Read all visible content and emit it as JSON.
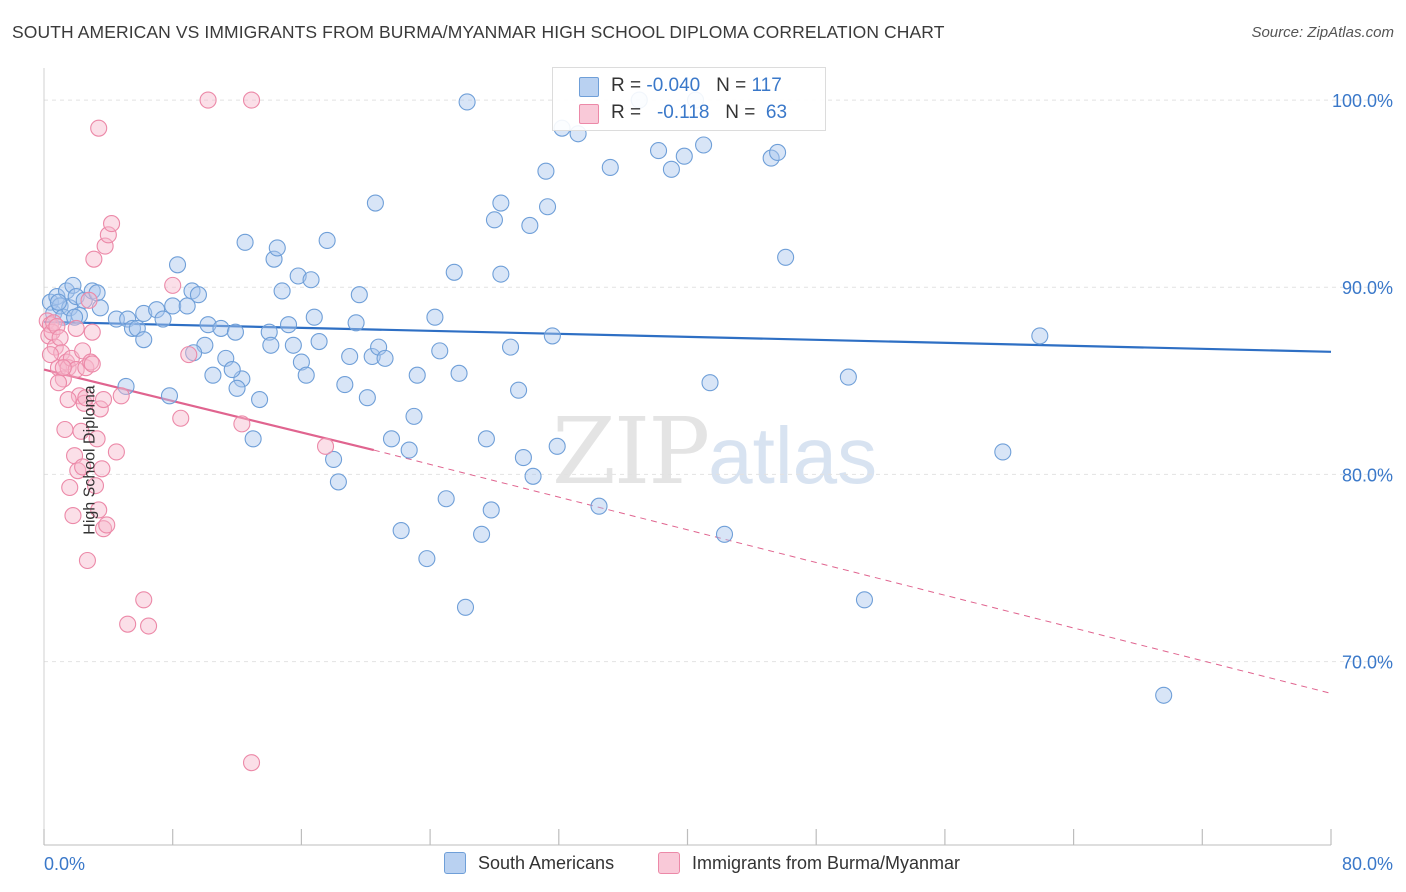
{
  "header": {
    "title": "SOUTH AMERICAN VS IMMIGRANTS FROM BURMA/MYANMAR HIGH SCHOOL DIPLOMA CORRELATION CHART",
    "source": "Source: ZipAtlas.com"
  },
  "legend_box": {
    "row1": {
      "r_label": "R = ",
      "r_value": "-0.040",
      "n_label": "N = ",
      "n_value": "117"
    },
    "row2": {
      "r_label": "R = ",
      "r_value": "-0.118",
      "n_label": "N = ",
      "n_value": "63"
    }
  },
  "colors": {
    "blue_fill": "#a9c6ee",
    "blue_stroke": "#6f9fd8",
    "blue_line": "#2e6fc4",
    "pink_fill": "#f6b8cc",
    "pink_stroke": "#ec89a8",
    "pink_line": "#e0648f",
    "grid": "#e2e2e2",
    "tick_label": "#3a78c9"
  },
  "chart_data": {
    "type": "scatter",
    "title": "SOUTH AMERICAN VS IMMIGRANTS FROM BURMA/MYANMAR HIGH SCHOOL DIPLOMA CORRELATION CHART",
    "xlabel": "",
    "ylabel": "High School Diploma",
    "xlim": [
      0,
      80
    ],
    "ylim": [
      60.2,
      101.5
    ],
    "x_tick_labels": [
      "0.0%",
      "80.0%"
    ],
    "y_ticks": [
      70,
      80,
      90,
      100
    ],
    "y_tick_labels": [
      "70.0%",
      "80.0%",
      "90.0%",
      "100.0%"
    ],
    "grid": true,
    "legend_position": "bottom",
    "series": [
      {
        "name": "South Americans",
        "color": "#a9c6ee",
        "R": -0.04,
        "N": 117,
        "trend": {
          "x": [
            0,
            80
          ],
          "y": [
            88.15,
            86.55
          ],
          "dashed_to": null
        },
        "points": [
          [
            0.4,
            89.2
          ],
          [
            0.6,
            88.6
          ],
          [
            0.8,
            89.5
          ],
          [
            1.0,
            89.0
          ],
          [
            1.2,
            88.4
          ],
          [
            1.4,
            89.8
          ],
          [
            1.6,
            88.9
          ],
          [
            1.8,
            90.1
          ],
          [
            2.0,
            89.5
          ],
          [
            2.2,
            88.5
          ],
          [
            2.5,
            89.3
          ],
          [
            3.0,
            89.8
          ],
          [
            3.3,
            89.7
          ],
          [
            4.5,
            88.3
          ],
          [
            5.2,
            88.3
          ],
          [
            5.5,
            87.8
          ],
          [
            5.8,
            87.8
          ],
          [
            6.2,
            88.6
          ],
          [
            6.2,
            87.2
          ],
          [
            7.0,
            88.8
          ],
          [
            7.4,
            88.3
          ],
          [
            8.0,
            89.0
          ],
          [
            8.3,
            91.2
          ],
          [
            8.9,
            89.0
          ],
          [
            9.2,
            89.8
          ],
          [
            9.6,
            89.6
          ],
          [
            10.0,
            86.9
          ],
          [
            10.2,
            88.0
          ],
          [
            10.5,
            85.3
          ],
          [
            11.0,
            87.8
          ],
          [
            11.3,
            86.2
          ],
          [
            11.9,
            87.6
          ],
          [
            12.3,
            85.1
          ],
          [
            12.5,
            92.4
          ],
          [
            13.0,
            81.9
          ],
          [
            13.4,
            84.0
          ],
          [
            14.0,
            87.6
          ],
          [
            14.3,
            91.5
          ],
          [
            14.5,
            92.1
          ],
          [
            14.8,
            89.8
          ],
          [
            15.2,
            88.0
          ],
          [
            15.5,
            86.9
          ],
          [
            15.8,
            90.6
          ],
          [
            16.0,
            86.0
          ],
          [
            16.3,
            85.3
          ],
          [
            16.6,
            90.4
          ],
          [
            16.8,
            88.4
          ],
          [
            17.1,
            87.1
          ],
          [
            17.6,
            92.5
          ],
          [
            18.0,
            80.8
          ],
          [
            18.3,
            79.6
          ],
          [
            18.7,
            84.8
          ],
          [
            19.0,
            86.3
          ],
          [
            19.4,
            88.1
          ],
          [
            19.6,
            89.6
          ],
          [
            20.1,
            84.1
          ],
          [
            20.4,
            86.3
          ],
          [
            20.6,
            94.5
          ],
          [
            20.8,
            86.8
          ],
          [
            21.2,
            86.2
          ],
          [
            21.6,
            81.9
          ],
          [
            22.2,
            77.0
          ],
          [
            22.7,
            81.3
          ],
          [
            23.0,
            83.1
          ],
          [
            23.2,
            85.3
          ],
          [
            23.8,
            75.5
          ],
          [
            24.3,
            88.4
          ],
          [
            24.6,
            86.6
          ],
          [
            25.0,
            78.7
          ],
          [
            25.5,
            90.8
          ],
          [
            25.8,
            85.4
          ],
          [
            26.2,
            72.9
          ],
          [
            26.3,
            99.9
          ],
          [
            27.2,
            76.8
          ],
          [
            27.5,
            81.9
          ],
          [
            27.8,
            78.1
          ],
          [
            28.0,
            93.6
          ],
          [
            28.4,
            90.7
          ],
          [
            28.4,
            94.5
          ],
          [
            29.0,
            86.8
          ],
          [
            29.5,
            84.5
          ],
          [
            29.8,
            80.9
          ],
          [
            30.2,
            93.3
          ],
          [
            30.4,
            79.9
          ],
          [
            31.2,
            96.2
          ],
          [
            31.3,
            94.3
          ],
          [
            31.6,
            87.4
          ],
          [
            31.9,
            81.5
          ],
          [
            32.2,
            98.5
          ],
          [
            33.2,
            98.2
          ],
          [
            34.5,
            78.3
          ],
          [
            35.2,
            96.4
          ],
          [
            37.0,
            100.0
          ],
          [
            38.2,
            97.3
          ],
          [
            39.0,
            96.3
          ],
          [
            39.8,
            97.0
          ],
          [
            40.5,
            100.0
          ],
          [
            41.0,
            97.6
          ],
          [
            41.4,
            84.9
          ],
          [
            42.3,
            76.8
          ],
          [
            45.2,
            96.9
          ],
          [
            45.6,
            97.2
          ],
          [
            46.1,
            91.6
          ],
          [
            50.0,
            85.2
          ],
          [
            51.0,
            73.3
          ],
          [
            59.6,
            81.2
          ],
          [
            61.9,
            87.4
          ],
          [
            69.6,
            68.2
          ],
          [
            3.5,
            88.9
          ],
          [
            9.3,
            86.5
          ],
          [
            12.0,
            84.6
          ],
          [
            5.1,
            84.7
          ],
          [
            7.8,
            84.2
          ],
          [
            1.9,
            88.4
          ],
          [
            14.1,
            86.9
          ],
          [
            0.9,
            89.2
          ],
          [
            11.7,
            85.6
          ]
        ]
      },
      {
        "name": "Immigrants from Burma/Myanmar",
        "color": "#f6b8cc",
        "R": -0.118,
        "N": 63,
        "trend": {
          "x": [
            0,
            20.5
          ],
          "y": [
            85.6,
            81.3
          ],
          "dashed_to": {
            "x": 80,
            "y": 68.3
          }
        },
        "points": [
          [
            0.2,
            88.2
          ],
          [
            0.3,
            87.4
          ],
          [
            0.4,
            88.0
          ],
          [
            0.5,
            87.6
          ],
          [
            0.6,
            88.1
          ],
          [
            0.7,
            86.8
          ],
          [
            0.8,
            87.9
          ],
          [
            0.9,
            85.7
          ],
          [
            1.0,
            87.3
          ],
          [
            1.1,
            86.5
          ],
          [
            1.2,
            85.1
          ],
          [
            1.3,
            82.4
          ],
          [
            1.4,
            86.0
          ],
          [
            1.5,
            85.7
          ],
          [
            1.6,
            79.3
          ],
          [
            1.7,
            86.2
          ],
          [
            1.8,
            77.8
          ],
          [
            1.9,
            81.0
          ],
          [
            2.0,
            85.6
          ],
          [
            2.1,
            80.2
          ],
          [
            2.2,
            84.2
          ],
          [
            2.3,
            82.3
          ],
          [
            2.4,
            86.6
          ],
          [
            2.5,
            83.8
          ],
          [
            2.6,
            85.7
          ],
          [
            2.7,
            75.4
          ],
          [
            2.8,
            89.3
          ],
          [
            2.9,
            86.0
          ],
          [
            3.0,
            87.6
          ],
          [
            3.1,
            91.5
          ],
          [
            3.2,
            79.4
          ],
          [
            3.3,
            81.9
          ],
          [
            3.4,
            78.1
          ],
          [
            3.5,
            83.5
          ],
          [
            3.6,
            80.3
          ],
          [
            3.7,
            77.1
          ],
          [
            3.8,
            92.2
          ],
          [
            3.9,
            77.3
          ],
          [
            4.0,
            92.8
          ],
          [
            4.2,
            93.4
          ],
          [
            4.5,
            81.2
          ],
          [
            4.8,
            84.2
          ],
          [
            5.2,
            72.0
          ],
          [
            6.2,
            73.3
          ],
          [
            6.5,
            71.9
          ],
          [
            8.0,
            90.1
          ],
          [
            8.5,
            83.0
          ],
          [
            9.0,
            86.4
          ],
          [
            10.2,
            100.0
          ],
          [
            12.3,
            82.7
          ],
          [
            12.9,
            100.0
          ],
          [
            12.9,
            64.6
          ],
          [
            17.5,
            81.5
          ],
          [
            3.4,
            98.5
          ],
          [
            1.5,
            84.0
          ],
          [
            2.6,
            84.1
          ],
          [
            0.9,
            84.9
          ],
          [
            0.4,
            86.4
          ],
          [
            1.2,
            85.7
          ],
          [
            2.0,
            87.8
          ],
          [
            3.0,
            85.9
          ],
          [
            2.4,
            80.4
          ],
          [
            3.7,
            84.0
          ]
        ]
      }
    ]
  },
  "bottom_legend": {
    "item1": "South Americans",
    "item2": "Immigrants from Burma/Myanmar"
  },
  "watermark": {
    "zip": "ZIP",
    "atlas": "atlas"
  }
}
